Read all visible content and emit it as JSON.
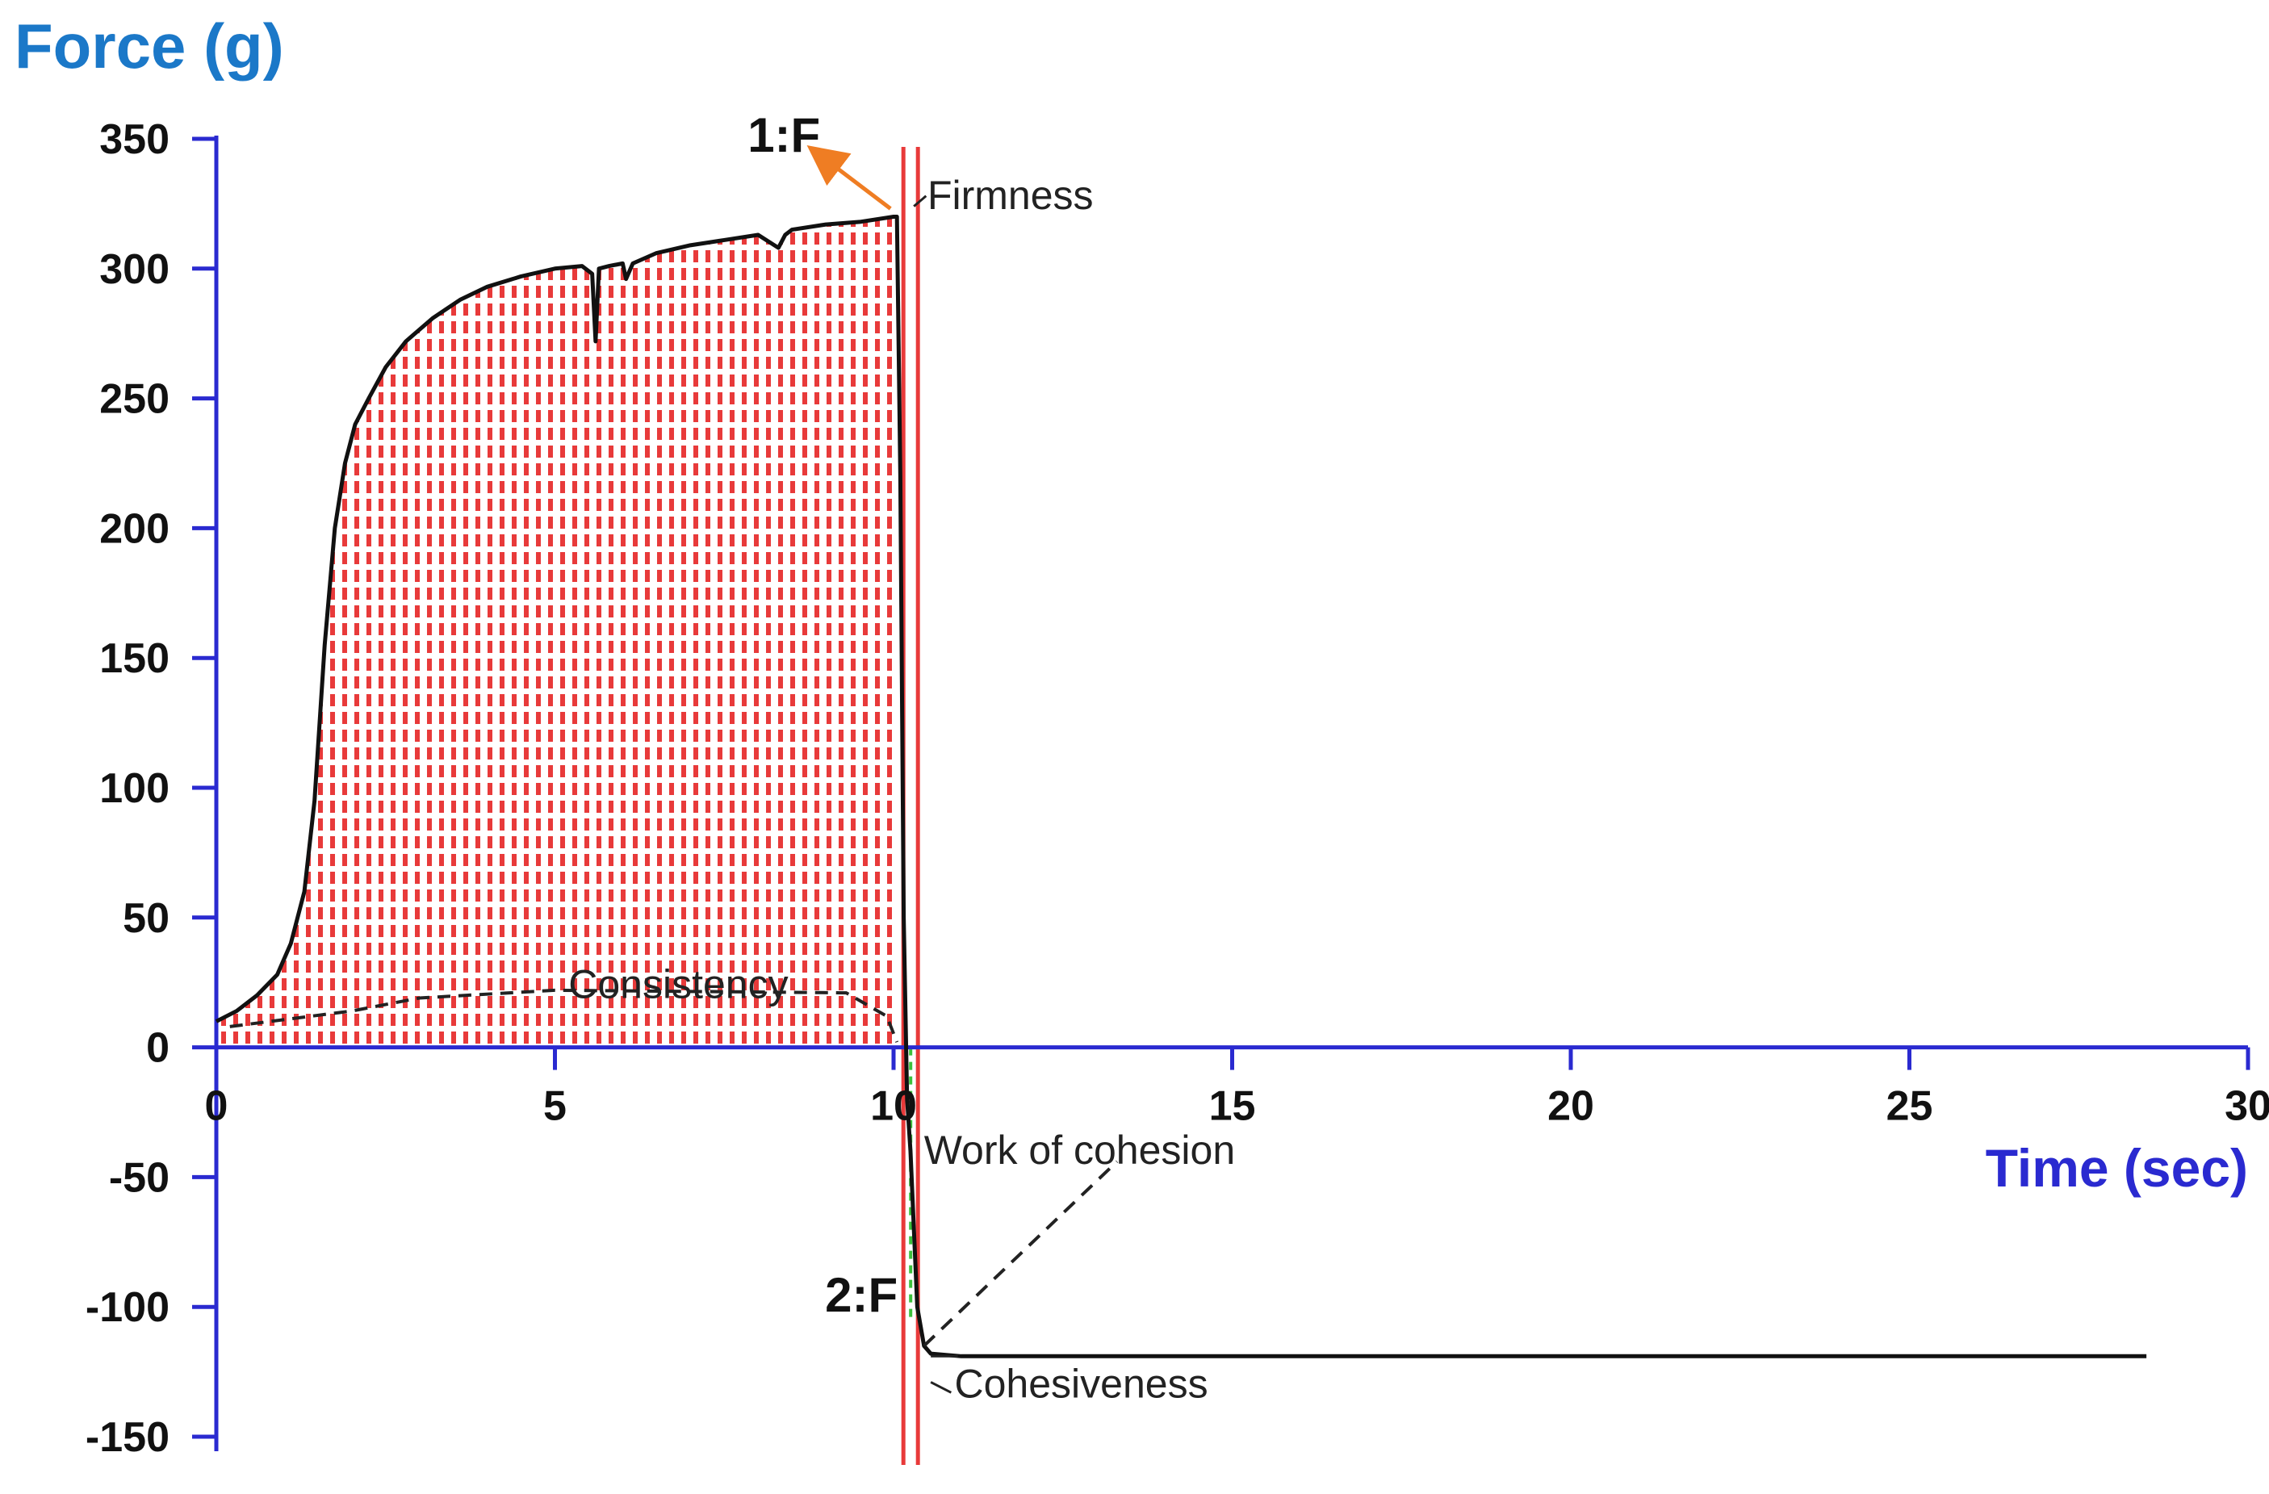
{
  "chart_data": {
    "type": "line",
    "ylabel": "Force (g)",
    "xlabel": "Time (sec)",
    "xlim": [
      0,
      30
    ],
    "ylim": [
      -150,
      350
    ],
    "xticks": [
      0,
      5,
      10,
      15,
      20,
      25,
      30
    ],
    "yticks": [
      350,
      300,
      250,
      200,
      150,
      100,
      50,
      0,
      -50,
      -100,
      -150
    ],
    "grid": false,
    "legend": "none",
    "colors": {
      "axis": "#2a2ad0",
      "ylabel": "#1b78c8",
      "xlabel": "#2a2ad0",
      "curve": "#111111",
      "fill_hatch": "#e83a3a",
      "marker_lines": "#e83a3a",
      "arrow": "#ef7d23",
      "green_dash": "#3cc13c"
    },
    "series": [
      {
        "x": [
          0,
          0.3,
          0.6,
          0.9,
          1.1,
          1.3,
          1.45,
          1.6,
          1.75,
          1.9,
          2.05,
          2.25,
          2.5,
          2.8,
          3.2,
          3.6,
          4.0,
          4.5,
          5.0,
          5.4,
          5.55,
          5.6,
          5.65,
          5.8,
          6.0,
          6.05,
          6.15,
          6.5,
          7.0,
          7.5,
          8.0,
          8.3,
          8.4,
          8.5,
          9.0,
          9.5,
          10.0,
          10.05,
          10.1,
          10.15,
          10.2,
          10.25,
          10.35,
          10.45,
          10.55,
          11,
          15,
          20,
          25,
          28.5
        ],
        "y": [
          10,
          14,
          20,
          28,
          40,
          60,
          95,
          155,
          200,
          225,
          240,
          250,
          262,
          272,
          281,
          288,
          293,
          297,
          300,
          301,
          298,
          272,
          300,
          301,
          302,
          296,
          302,
          306,
          309,
          311,
          313,
          308,
          313,
          315,
          317,
          318,
          320,
          320,
          220,
          50,
          -20,
          -40,
          -100,
          -115,
          -118,
          -119,
          -119,
          -119,
          -119,
          -119
        ]
      }
    ],
    "points": [
      {
        "label": "1:F",
        "x": 10.05,
        "y": 320
      },
      {
        "label": "2:F",
        "x": 10.3,
        "y": -95
      }
    ],
    "annotations": [
      {
        "text": "Firmness",
        "x": 10.5,
        "y": 328
      },
      {
        "text": "Consistency",
        "x": 5.2,
        "y": 24
      },
      {
        "text": "Work of cohesion",
        "x": 10.45,
        "y": -40
      },
      {
        "text": "Cohesiveness",
        "x": 10.9,
        "y": -130
      }
    ]
  }
}
